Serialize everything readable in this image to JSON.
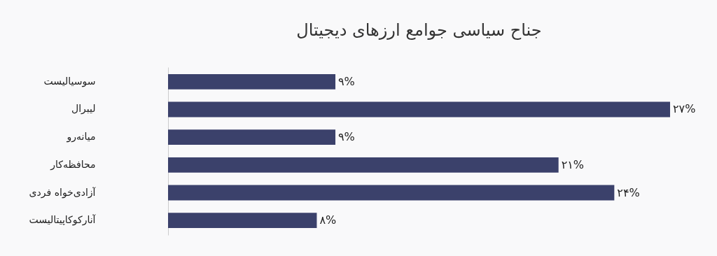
{
  "chart_data": {
    "type": "bar",
    "orientation": "horizontal",
    "title": "جناح سیاسی جوامع ارزهای دیجیتال",
    "categories": [
      "سوسیالیست",
      "لیبرال",
      "میانه‌رو",
      "محافظه‌کار",
      "آزادی‌خواه فردی",
      "آنارکوکاپیتالیست"
    ],
    "values": [
      9,
      27,
      9,
      21,
      24,
      8
    ],
    "value_labels": [
      "۹%",
      "۲۷%",
      "۹%",
      "۲۱%",
      "۲۴%",
      "۸%"
    ],
    "color": "#3b416b",
    "grid": false,
    "tick_labels": "y"
  }
}
